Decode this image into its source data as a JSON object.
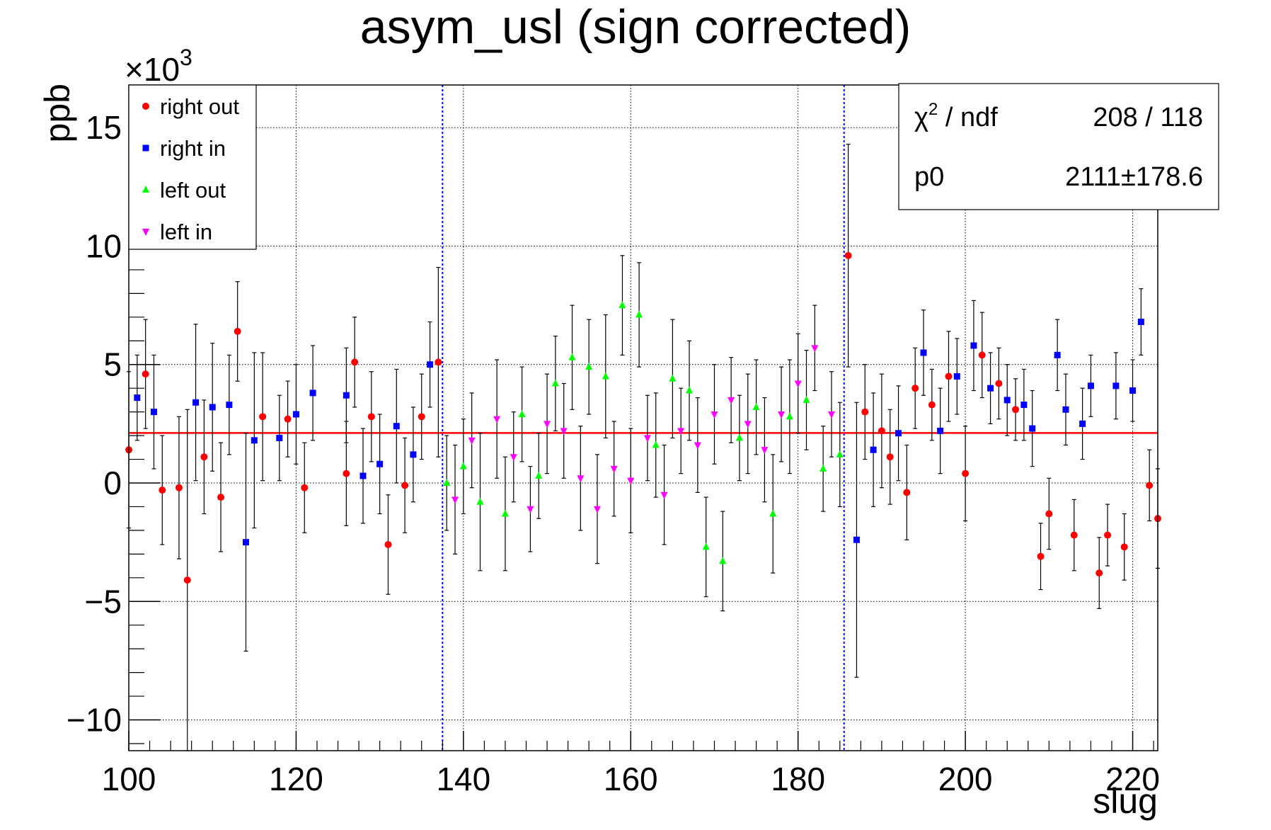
{
  "chart_data": {
    "type": "scatter",
    "title": "asym_usl (sign corrected)",
    "xlabel": "slug",
    "ylabel": "ppb",
    "y_multiplier_label": "×10",
    "y_multiplier_exponent": "3",
    "xlim": [
      100,
      223
    ],
    "ylim": [
      -11.3,
      16.8
    ],
    "x_ticks": [
      100,
      120,
      140,
      160,
      180,
      200,
      220
    ],
    "x_tick_labels": [
      "100",
      "120",
      "140",
      "160",
      "180",
      "200",
      "220"
    ],
    "y_ticks": [
      -10,
      -5,
      0,
      5,
      10,
      15
    ],
    "y_tick_labels": [
      "−10",
      "−5",
      "0",
      "5",
      "10",
      "15"
    ],
    "grid": true,
    "legend_position": "top-left",
    "vertical_lines": [
      137.5,
      185.5
    ],
    "fit_line": {
      "y": 2.111,
      "x_range": [
        100,
        223
      ]
    },
    "stats_box": {
      "chi2_label": "χ",
      "chi2_sup": "2",
      "chi2_suffix": " / ndf",
      "chi2_value": "208 / 118",
      "p0_label": "p0",
      "p0_value": "2111",
      "p0_pm": "±",
      "p0_err": "178.6"
    },
    "series": [
      {
        "name": "right out",
        "color": "#ff0000",
        "marker": "circle",
        "points": [
          {
            "x": 100,
            "y": 1.4,
            "err": 3.3
          },
          {
            "x": 102,
            "y": 4.6,
            "err": 2.3
          },
          {
            "x": 104,
            "y": -0.3,
            "err": 2.3
          },
          {
            "x": 106,
            "y": -0.2,
            "err": 3.0
          },
          {
            "x": 107,
            "y": -4.1,
            "err": 7.2
          },
          {
            "x": 109,
            "y": 1.1,
            "err": 2.4
          },
          {
            "x": 111,
            "y": -0.6,
            "err": 2.3
          },
          {
            "x": 113,
            "y": 6.4,
            "err": 2.1
          },
          {
            "x": 116,
            "y": 2.8,
            "err": 2.7
          },
          {
            "x": 119,
            "y": 2.7,
            "err": 1.6
          },
          {
            "x": 121,
            "y": -0.2,
            "err": 1.9
          },
          {
            "x": 126,
            "y": 0.4,
            "err": 2.2
          },
          {
            "x": 127,
            "y": 5.1,
            "err": 1.9
          },
          {
            "x": 129,
            "y": 2.8,
            "err": 1.9
          },
          {
            "x": 131,
            "y": -2.6,
            "err": 2.1
          },
          {
            "x": 133,
            "y": -0.1,
            "err": 2.0
          },
          {
            "x": 135,
            "y": 2.8,
            "err": 1.8
          },
          {
            "x": 137,
            "y": 5.1,
            "err": 4.0
          },
          {
            "x": 186,
            "y": 9.6,
            "err": 4.7
          },
          {
            "x": 188,
            "y": 3.0,
            "err": 2.0
          },
          {
            "x": 190,
            "y": 2.2,
            "err": 2.4
          },
          {
            "x": 191,
            "y": 1.1,
            "err": 2.0
          },
          {
            "x": 193,
            "y": -0.4,
            "err": 2.0
          },
          {
            "x": 194,
            "y": 4.0,
            "err": 1.7
          },
          {
            "x": 196,
            "y": 3.3,
            "err": 1.5
          },
          {
            "x": 198,
            "y": 4.5,
            "err": 1.9
          },
          {
            "x": 200,
            "y": 0.4,
            "err": 2.0
          },
          {
            "x": 202,
            "y": 5.4,
            "err": 1.8
          },
          {
            "x": 204,
            "y": 4.2,
            "err": 1.5
          },
          {
            "x": 206,
            "y": 3.1,
            "err": 1.3
          },
          {
            "x": 209,
            "y": -3.1,
            "err": 1.4
          },
          {
            "x": 210,
            "y": -1.3,
            "err": 1.5
          },
          {
            "x": 213,
            "y": -2.2,
            "err": 1.5
          },
          {
            "x": 216,
            "y": -3.8,
            "err": 1.5
          },
          {
            "x": 217,
            "y": -2.2,
            "err": 1.3
          },
          {
            "x": 219,
            "y": -2.7,
            "err": 1.4
          },
          {
            "x": 222,
            "y": -0.1,
            "err": 1.5
          },
          {
            "x": 223,
            "y": -1.5,
            "err": 2.1
          }
        ]
      },
      {
        "name": "right in",
        "color": "#0000ff",
        "marker": "square",
        "points": [
          {
            "x": 101,
            "y": 3.6,
            "err": 1.8
          },
          {
            "x": 103,
            "y": 3.0,
            "err": 2.4
          },
          {
            "x": 108,
            "y": 3.4,
            "err": 3.3
          },
          {
            "x": 110,
            "y": 3.2,
            "err": 2.7
          },
          {
            "x": 112,
            "y": 3.3,
            "err": 2.1
          },
          {
            "x": 114,
            "y": -2.5,
            "err": 4.6
          },
          {
            "x": 115,
            "y": 1.8,
            "err": 3.7
          },
          {
            "x": 118,
            "y": 1.9,
            "err": 1.8
          },
          {
            "x": 120,
            "y": 2.9,
            "err": 2.1
          },
          {
            "x": 122,
            "y": 3.8,
            "err": 2.0
          },
          {
            "x": 126,
            "y": 3.7,
            "err": 2.0
          },
          {
            "x": 128,
            "y": 0.3,
            "err": 2.0
          },
          {
            "x": 130,
            "y": 0.8,
            "err": 2.1
          },
          {
            "x": 132,
            "y": 2.4,
            "err": 2.4
          },
          {
            "x": 134,
            "y": 1.2,
            "err": 2.0
          },
          {
            "x": 136,
            "y": 5.0,
            "err": 1.8
          },
          {
            "x": 187,
            "y": -2.4,
            "err": 5.8
          },
          {
            "x": 189,
            "y": 1.4,
            "err": 2.4
          },
          {
            "x": 192,
            "y": 2.1,
            "err": 2.0
          },
          {
            "x": 195,
            "y": 5.5,
            "err": 1.8
          },
          {
            "x": 197,
            "y": 2.2,
            "err": 1.8
          },
          {
            "x": 199,
            "y": 4.5,
            "err": 1.6
          },
          {
            "x": 201,
            "y": 5.8,
            "err": 1.9
          },
          {
            "x": 203,
            "y": 4.0,
            "err": 1.5
          },
          {
            "x": 205,
            "y": 3.5,
            "err": 1.5
          },
          {
            "x": 207,
            "y": 3.3,
            "err": 1.5
          },
          {
            "x": 208,
            "y": 2.3,
            "err": 1.6
          },
          {
            "x": 211,
            "y": 5.4,
            "err": 1.5
          },
          {
            "x": 212,
            "y": 3.1,
            "err": 1.5
          },
          {
            "x": 214,
            "y": 2.5,
            "err": 1.5
          },
          {
            "x": 215,
            "y": 4.1,
            "err": 1.3
          },
          {
            "x": 218,
            "y": 4.1,
            "err": 1.4
          },
          {
            "x": 220,
            "y": 3.9,
            "err": 1.3
          },
          {
            "x": 221,
            "y": 6.8,
            "err": 1.4
          }
        ]
      },
      {
        "name": "left out",
        "color": "#00ff00",
        "marker": "triangle-up",
        "points": [
          {
            "x": 138,
            "y": 0.0,
            "err": 2.0
          },
          {
            "x": 140,
            "y": 0.7,
            "err": 2.0
          },
          {
            "x": 142,
            "y": -0.8,
            "err": 2.9
          },
          {
            "x": 145,
            "y": -1.3,
            "err": 2.4
          },
          {
            "x": 147,
            "y": 2.9,
            "err": 2.0
          },
          {
            "x": 149,
            "y": 0.3,
            "err": 1.8
          },
          {
            "x": 151,
            "y": 4.2,
            "err": 2.0
          },
          {
            "x": 153,
            "y": 5.3,
            "err": 2.2
          },
          {
            "x": 155,
            "y": 4.9,
            "err": 2.0
          },
          {
            "x": 157,
            "y": 4.5,
            "err": 2.6
          },
          {
            "x": 159,
            "y": 7.5,
            "err": 2.1
          },
          {
            "x": 161,
            "y": 7.1,
            "err": 2.2
          },
          {
            "x": 163,
            "y": 1.6,
            "err": 2.2
          },
          {
            "x": 165,
            "y": 4.4,
            "err": 2.5
          },
          {
            "x": 167,
            "y": 3.9,
            "err": 2.1
          },
          {
            "x": 169,
            "y": -2.7,
            "err": 2.1
          },
          {
            "x": 171,
            "y": -3.3,
            "err": 2.1
          },
          {
            "x": 173,
            "y": 1.9,
            "err": 1.8
          },
          {
            "x": 175,
            "y": 3.2,
            "err": 2.0
          },
          {
            "x": 177,
            "y": -1.3,
            "err": 2.5
          },
          {
            "x": 179,
            "y": 2.8,
            "err": 2.4
          },
          {
            "x": 181,
            "y": 3.5,
            "err": 2.1
          },
          {
            "x": 183,
            "y": 0.6,
            "err": 1.8
          },
          {
            "x": 185,
            "y": 1.2,
            "err": 2.2
          }
        ]
      },
      {
        "name": "left in",
        "color": "#ff00ff",
        "marker": "triangle-down",
        "points": [
          {
            "x": 139,
            "y": -0.7,
            "err": 2.3
          },
          {
            "x": 141,
            "y": 1.8,
            "err": 2.0
          },
          {
            "x": 144,
            "y": 2.7,
            "err": 2.5
          },
          {
            "x": 146,
            "y": 1.1,
            "err": 1.9
          },
          {
            "x": 148,
            "y": -1.1,
            "err": 1.8
          },
          {
            "x": 150,
            "y": 2.5,
            "err": 2.1
          },
          {
            "x": 152,
            "y": 2.2,
            "err": 2.0
          },
          {
            "x": 154,
            "y": 0.2,
            "err": 2.2
          },
          {
            "x": 156,
            "y": -1.1,
            "err": 2.3
          },
          {
            "x": 158,
            "y": 0.6,
            "err": 2.0
          },
          {
            "x": 160,
            "y": 0.1,
            "err": 2.2
          },
          {
            "x": 162,
            "y": 1.9,
            "err": 1.8
          },
          {
            "x": 164,
            "y": -0.5,
            "err": 2.1
          },
          {
            "x": 166,
            "y": 2.2,
            "err": 1.8
          },
          {
            "x": 168,
            "y": 1.6,
            "err": 2.0
          },
          {
            "x": 170,
            "y": 2.9,
            "err": 2.1
          },
          {
            "x": 172,
            "y": 3.5,
            "err": 1.8
          },
          {
            "x": 174,
            "y": 2.5,
            "err": 2.1
          },
          {
            "x": 176,
            "y": 1.4,
            "err": 2.2
          },
          {
            "x": 178,
            "y": 2.9,
            "err": 2.0
          },
          {
            "x": 180,
            "y": 4.2,
            "err": 2.1
          },
          {
            "x": 182,
            "y": 5.7,
            "err": 1.8
          },
          {
            "x": 184,
            "y": 2.9,
            "err": 1.8
          }
        ]
      }
    ]
  }
}
